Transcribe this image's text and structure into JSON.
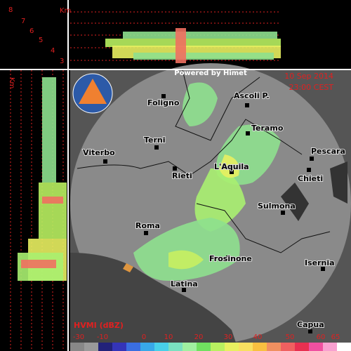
{
  "top_panel": {
    "km_label": "Km",
    "heights": [
      "8",
      "7",
      "6",
      "5",
      "4",
      "3"
    ]
  },
  "left_panel": {
    "km_label": "Km"
  },
  "header": {
    "credit": "Powered by Himet",
    "date": "10 Sep 2014",
    "time": "23:00 CEST"
  },
  "cities": [
    {
      "label": "Foligno"
    },
    {
      "label": "Ascoli P."
    },
    {
      "label": "Teramo"
    },
    {
      "label": "Terni"
    },
    {
      "label": "Viterbo"
    },
    {
      "label": "Rieti"
    },
    {
      "label": "L'Aquila"
    },
    {
      "label": "Pescara"
    },
    {
      "label": "Chieti"
    },
    {
      "label": "Sulmona"
    },
    {
      "label": "Roma"
    },
    {
      "label": "Frosinone"
    },
    {
      "label": "Isernia"
    },
    {
      "label": "Latina"
    },
    {
      "label": "Capua"
    }
  ],
  "colorbar": {
    "title": "HVMI (dBZ)",
    "labels": [
      "-30",
      "-10",
      "0",
      "10",
      "20",
      "30",
      "40",
      "50",
      "60",
      "65"
    ]
  }
}
